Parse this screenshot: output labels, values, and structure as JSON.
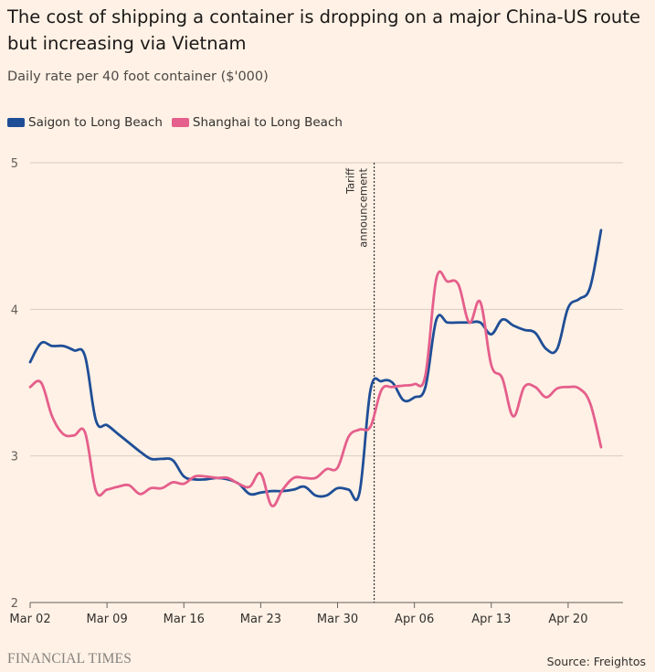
{
  "title": "The cost of shipping a container is dropping on a major China-US route but increasing via Vietnam",
  "subtitle": "Daily rate per 40 foot container ($'000)",
  "source": "Source: Freightos",
  "publisher": "FINANCIAL TIMES",
  "chart_data": {
    "type": "line",
    "title": "The cost of shipping a container is dropping on a major China-US route but increasing via Vietnam",
    "ylabel": "Daily rate per 40 foot container ($'000)",
    "xlabel": "",
    "ylim": [
      2,
      5
    ],
    "xlim": [
      "2025-03-02",
      "2025-04-25"
    ],
    "yticks": [
      2,
      3,
      4,
      5
    ],
    "xticks": [
      {
        "date": "2025-03-02",
        "label": "Mar 02"
      },
      {
        "date": "2025-03-09",
        "label": "Mar 09"
      },
      {
        "date": "2025-03-16",
        "label": "Mar 16"
      },
      {
        "date": "2025-03-23",
        "label": "Mar 23"
      },
      {
        "date": "2025-03-30",
        "label": "Mar 30"
      },
      {
        "date": "2025-04-06",
        "label": "Apr 06"
      },
      {
        "date": "2025-04-13",
        "label": "Apr 13"
      },
      {
        "date": "2025-04-20",
        "label": "Apr 20"
      }
    ],
    "grid": "horizontal",
    "legend_position": "top-left",
    "annotation": {
      "date": "2025-04-02",
      "label_lines": [
        "Tariff",
        "announcement"
      ]
    },
    "series": [
      {
        "name": "Saigon to Long Beach",
        "color": "#1f4e97",
        "points": [
          [
            "2025-03-02",
            3.64
          ],
          [
            "2025-03-03",
            3.77
          ],
          [
            "2025-03-04",
            3.75
          ],
          [
            "2025-03-05",
            3.75
          ],
          [
            "2025-03-06",
            3.72
          ],
          [
            "2025-03-07",
            3.68
          ],
          [
            "2025-03-08",
            3.24
          ],
          [
            "2025-03-09",
            3.21
          ],
          [
            "2025-03-10",
            3.15
          ],
          [
            "2025-03-11",
            3.09
          ],
          [
            "2025-03-12",
            3.03
          ],
          [
            "2025-03-13",
            2.98
          ],
          [
            "2025-03-14",
            2.98
          ],
          [
            "2025-03-15",
            2.97
          ],
          [
            "2025-03-16",
            2.86
          ],
          [
            "2025-03-17",
            2.84
          ],
          [
            "2025-03-18",
            2.84
          ],
          [
            "2025-03-19",
            2.85
          ],
          [
            "2025-03-20",
            2.84
          ],
          [
            "2025-03-21",
            2.81
          ],
          [
            "2025-03-22",
            2.74
          ],
          [
            "2025-03-23",
            2.75
          ],
          [
            "2025-03-24",
            2.76
          ],
          [
            "2025-03-25",
            2.76
          ],
          [
            "2025-03-26",
            2.77
          ],
          [
            "2025-03-27",
            2.79
          ],
          [
            "2025-03-28",
            2.73
          ],
          [
            "2025-03-29",
            2.73
          ],
          [
            "2025-03-30",
            2.78
          ],
          [
            "2025-03-31",
            2.77
          ],
          [
            "2025-04-01",
            2.75
          ],
          [
            "2025-04-02",
            3.45
          ],
          [
            "2025-04-03",
            3.51
          ],
          [
            "2025-04-04",
            3.5
          ],
          [
            "2025-04-05",
            3.38
          ],
          [
            "2025-04-06",
            3.4
          ],
          [
            "2025-04-07",
            3.47
          ],
          [
            "2025-04-08",
            3.93
          ],
          [
            "2025-04-09",
            3.91
          ],
          [
            "2025-04-10",
            3.91
          ],
          [
            "2025-04-11",
            3.91
          ],
          [
            "2025-04-12",
            3.91
          ],
          [
            "2025-04-13",
            3.83
          ],
          [
            "2025-04-14",
            3.93
          ],
          [
            "2025-04-15",
            3.89
          ],
          [
            "2025-04-16",
            3.86
          ],
          [
            "2025-04-17",
            3.84
          ],
          [
            "2025-04-18",
            3.73
          ],
          [
            "2025-04-19",
            3.73
          ],
          [
            "2025-04-20",
            4.01
          ],
          [
            "2025-04-21",
            4.07
          ],
          [
            "2025-04-22",
            4.15
          ],
          [
            "2025-04-23",
            4.54
          ]
        ]
      },
      {
        "name": "Shanghai to Long Beach",
        "color": "#e55f8c",
        "points": [
          [
            "2025-03-02",
            3.47
          ],
          [
            "2025-03-03",
            3.5
          ],
          [
            "2025-03-04",
            3.27
          ],
          [
            "2025-03-05",
            3.15
          ],
          [
            "2025-03-06",
            3.14
          ],
          [
            "2025-03-07",
            3.16
          ],
          [
            "2025-03-08",
            2.76
          ],
          [
            "2025-03-09",
            2.77
          ],
          [
            "2025-03-10",
            2.79
          ],
          [
            "2025-03-11",
            2.8
          ],
          [
            "2025-03-12",
            2.74
          ],
          [
            "2025-03-13",
            2.78
          ],
          [
            "2025-03-14",
            2.78
          ],
          [
            "2025-03-15",
            2.82
          ],
          [
            "2025-03-16",
            2.81
          ],
          [
            "2025-03-17",
            2.86
          ],
          [
            "2025-03-18",
            2.86
          ],
          [
            "2025-03-19",
            2.85
          ],
          [
            "2025-03-20",
            2.85
          ],
          [
            "2025-03-21",
            2.81
          ],
          [
            "2025-03-22",
            2.79
          ],
          [
            "2025-03-23",
            2.88
          ],
          [
            "2025-03-24",
            2.66
          ],
          [
            "2025-03-25",
            2.77
          ],
          [
            "2025-03-26",
            2.85
          ],
          [
            "2025-03-27",
            2.85
          ],
          [
            "2025-03-28",
            2.85
          ],
          [
            "2025-03-29",
            2.91
          ],
          [
            "2025-03-30",
            2.92
          ],
          [
            "2025-03-31",
            3.13
          ],
          [
            "2025-04-01",
            3.18
          ],
          [
            "2025-04-02",
            3.2
          ],
          [
            "2025-04-03",
            3.45
          ],
          [
            "2025-04-04",
            3.47
          ],
          [
            "2025-04-05",
            3.48
          ],
          [
            "2025-04-06",
            3.49
          ],
          [
            "2025-04-07",
            3.55
          ],
          [
            "2025-04-08",
            4.21
          ],
          [
            "2025-04-09",
            4.19
          ],
          [
            "2025-04-10",
            4.17
          ],
          [
            "2025-04-11",
            3.91
          ],
          [
            "2025-04-12",
            4.05
          ],
          [
            "2025-04-13",
            3.62
          ],
          [
            "2025-04-14",
            3.53
          ],
          [
            "2025-04-15",
            3.27
          ],
          [
            "2025-04-16",
            3.47
          ],
          [
            "2025-04-17",
            3.47
          ],
          [
            "2025-04-18",
            3.4
          ],
          [
            "2025-04-19",
            3.46
          ],
          [
            "2025-04-20",
            3.47
          ],
          [
            "2025-04-21",
            3.46
          ],
          [
            "2025-04-22",
            3.36
          ],
          [
            "2025-04-23",
            3.06
          ]
        ]
      }
    ]
  }
}
